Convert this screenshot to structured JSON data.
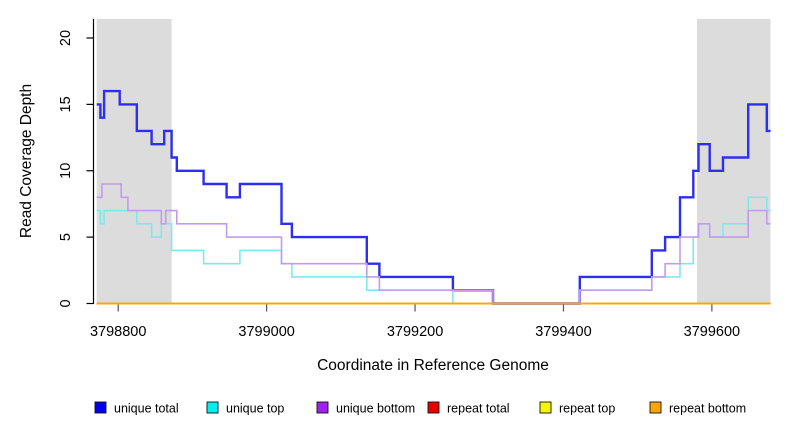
{
  "y_axis": {
    "label": "Read Coverage Depth",
    "ticks": [
      0,
      5,
      10,
      15,
      20
    ],
    "range": [
      0,
      21.4
    ]
  },
  "x_axis": {
    "label": "Coordinate in Reference Genome",
    "ticks": [
      3798800,
      3799000,
      3799200,
      3799400,
      3799600
    ],
    "range": [
      3798771,
      3799679
    ]
  },
  "shaded_regions": [
    {
      "from": 3798771,
      "to": 3798872
    },
    {
      "from": 3799580,
      "to": 3799679
    }
  ],
  "shaded_color": "#dcdcdc",
  "axis_color": "#000000",
  "legend": [
    {
      "label": "unique total",
      "color": "#0000ee"
    },
    {
      "label": "unique top",
      "color": "#00eeee"
    },
    {
      "label": "unique bottom",
      "color": "#a020f0"
    },
    {
      "label": "repeat total",
      "color": "#e80000"
    },
    {
      "label": "repeat top",
      "color": "#f5f500"
    },
    {
      "label": "repeat bottom",
      "color": "#ffa500"
    }
  ],
  "chart_data": {
    "type": "line",
    "step": true,
    "grid": false,
    "legend_position": "bottom",
    "series": [
      {
        "name": "unique total",
        "line_color": "#2e2ef0",
        "line_width": 2.4,
        "points": [
          [
            3798771,
            15
          ],
          [
            3798776,
            14
          ],
          [
            3798781,
            16
          ],
          [
            3798802,
            15
          ],
          [
            3798825,
            13
          ],
          [
            3798845,
            12
          ],
          [
            3798862,
            13
          ],
          [
            3798872,
            11
          ],
          [
            3798879,
            10
          ],
          [
            3798915,
            9
          ],
          [
            3798946,
            8
          ],
          [
            3798964,
            9
          ],
          [
            3799020,
            6
          ],
          [
            3799034,
            5
          ],
          [
            3799135,
            3
          ],
          [
            3799152,
            2
          ],
          [
            3799251,
            1
          ],
          [
            3799305,
            0
          ],
          [
            3799422,
            2
          ],
          [
            3799519,
            4
          ],
          [
            3799537,
            5
          ],
          [
            3799557,
            8
          ],
          [
            3799575,
            10
          ],
          [
            3799582,
            12
          ],
          [
            3799597,
            10
          ],
          [
            3799615,
            11
          ],
          [
            3799649,
            15
          ],
          [
            3799674,
            13
          ],
          [
            3799679,
            13
          ]
        ]
      },
      {
        "name": "unique top",
        "line_color": "#7fe8ef",
        "line_width": 1.6,
        "points": [
          [
            3798771,
            7
          ],
          [
            3798776,
            6
          ],
          [
            3798781,
            7
          ],
          [
            3798825,
            6
          ],
          [
            3798845,
            5
          ],
          [
            3798858,
            6
          ],
          [
            3798872,
            4
          ],
          [
            3798915,
            3
          ],
          [
            3798964,
            4
          ],
          [
            3799020,
            3
          ],
          [
            3799034,
            2
          ],
          [
            3799135,
            1
          ],
          [
            3799251,
            0
          ],
          [
            3799422,
            1
          ],
          [
            3799519,
            2
          ],
          [
            3799557,
            3
          ],
          [
            3799575,
            5
          ],
          [
            3799582,
            6
          ],
          [
            3799597,
            5
          ],
          [
            3799615,
            6
          ],
          [
            3799649,
            8
          ],
          [
            3799674,
            7
          ],
          [
            3799679,
            7
          ]
        ]
      },
      {
        "name": "unique bottom",
        "line_color": "#c49af0",
        "line_width": 1.6,
        "points": [
          [
            3798771,
            8
          ],
          [
            3798778,
            9
          ],
          [
            3798804,
            8
          ],
          [
            3798813,
            7
          ],
          [
            3798858,
            6
          ],
          [
            3798864,
            7
          ],
          [
            3798879,
            6
          ],
          [
            3798946,
            5
          ],
          [
            3799020,
            3
          ],
          [
            3799135,
            2
          ],
          [
            3799152,
            1
          ],
          [
            3799305,
            0
          ],
          [
            3799422,
            1
          ],
          [
            3799519,
            2
          ],
          [
            3799537,
            3
          ],
          [
            3799557,
            5
          ],
          [
            3799582,
            6
          ],
          [
            3799597,
            5
          ],
          [
            3799649,
            7
          ],
          [
            3799674,
            6
          ],
          [
            3799679,
            6
          ]
        ]
      },
      {
        "name": "repeat total",
        "line_color": "#e80000",
        "line_width": 1.6,
        "points": [
          [
            3798771,
            0
          ],
          [
            3799679,
            0
          ]
        ]
      },
      {
        "name": "repeat top",
        "line_color": "#f5f500",
        "line_width": 1.6,
        "points": [
          [
            3798771,
            0
          ],
          [
            3799679,
            0
          ]
        ]
      },
      {
        "name": "repeat bottom",
        "line_color": "#ffa500",
        "line_width": 1.8,
        "points": [
          [
            3798771,
            0
          ],
          [
            3799679,
            0
          ]
        ]
      }
    ]
  }
}
